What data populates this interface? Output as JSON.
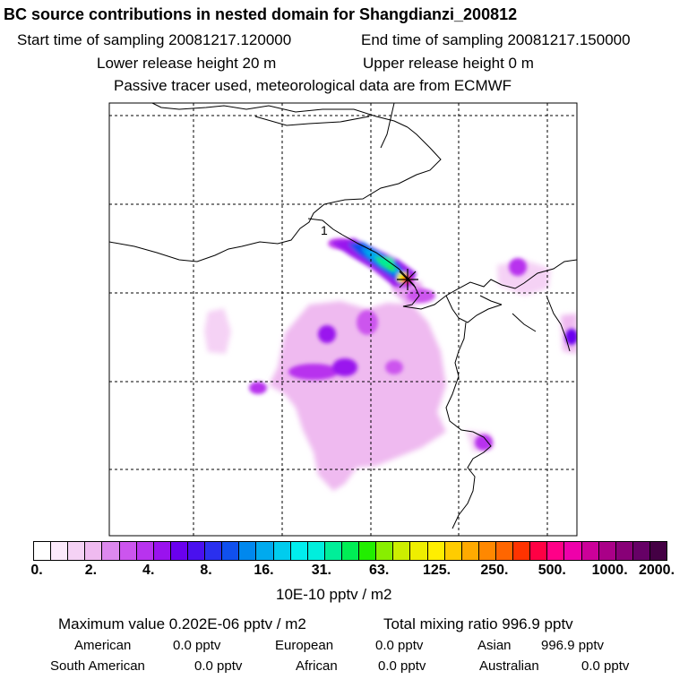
{
  "header": {
    "title": "BC  source contributions in nested domain for Shangdianzi_200812",
    "start_label": "Start time of sampling 20081217.120000",
    "end_label": "End time of sampling 20081217.150000",
    "lower_release": "Lower release height   20 m",
    "upper_release": "Upper release height    0 m",
    "tracer_note": "Passive tracer used, meteorological data are from ECMWF"
  },
  "map": {
    "contour_label": "1",
    "station_marker": "receptor-star"
  },
  "colorbar": {
    "colors": [
      "#ffffff",
      "#fbe9fb",
      "#f5d2f5",
      "#efbaf0",
      "#dd88ee",
      "#cc55ee",
      "#b833ee",
      "#9a12ee",
      "#6a00ee",
      "#4a10ee",
      "#2a30ee",
      "#1050ee",
      "#0088ee",
      "#00aaee",
      "#00ccee",
      "#00eeee",
      "#00eedd",
      "#00ee99",
      "#00ee55",
      "#22ee00",
      "#88ee00",
      "#ccee00",
      "#eeee00",
      "#ffee00",
      "#ffcc00",
      "#ffaa00",
      "#ff8800",
      "#ff6600",
      "#ff3300",
      "#ff0044",
      "#ff0088",
      "#ee00aa",
      "#cc0099",
      "#aa0088",
      "#880077",
      "#660066",
      "#440044"
    ],
    "ticks": [
      "0.",
      "2.",
      "4.",
      "8.",
      "16.",
      "31.",
      "63.",
      "125.",
      "250.",
      "500.",
      "1000.",
      "2000."
    ],
    "units": "10E-10 pptv / m2"
  },
  "summary": {
    "max_value": "Maximum value  0.202E-06 pptv / m2",
    "total_mixing": "Total mixing ratio      996.9 pptv",
    "american_label": "American",
    "american_value": "0.0 pptv",
    "european_label": "European",
    "european_value": "0.0 pptv",
    "asian_label": "Asian",
    "asian_value": "996.9 pptv",
    "south_american_label": "South American",
    "south_american_value": "0.0 pptv",
    "african_label": "African",
    "african_value": "0.0 pptv",
    "australian_label": "Australian",
    "australian_value": "0.0 pptv"
  }
}
